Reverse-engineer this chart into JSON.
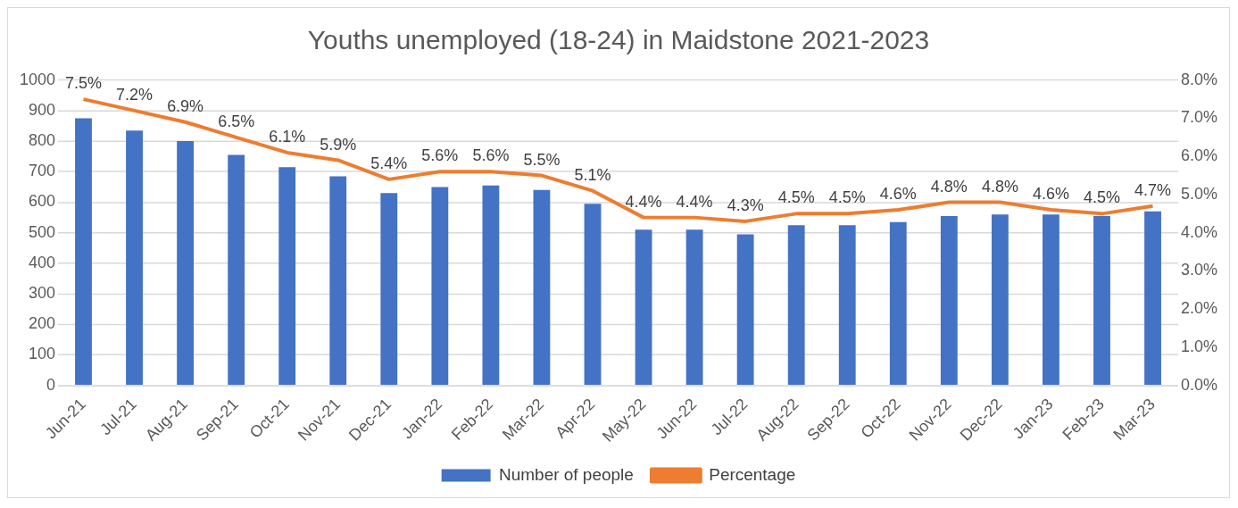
{
  "chart_data": {
    "type": "bar",
    "title": "Youths unemployed (18-24) in Maidstone 2021-2023",
    "categories": [
      "Jun-21",
      "Jul-21",
      "Aug-21",
      "Sep-21",
      "Oct-21",
      "Nov-21",
      "Dec-21",
      "Jan-22",
      "Feb-22",
      "Mar-22",
      "Apr-22",
      "May-22",
      "Jun-22",
      "Jul-22",
      "Aug-22",
      "Sep-22",
      "Oct-22",
      "Nov-22",
      "Dec-22",
      "Jan-23",
      "Feb-23",
      "Mar-23"
    ],
    "series": [
      {
        "name": "Number of people",
        "color": "#4472c4",
        "values": [
          875,
          835,
          800,
          755,
          715,
          685,
          630,
          650,
          655,
          640,
          595,
          510,
          510,
          495,
          525,
          525,
          535,
          555,
          560,
          560,
          555,
          570
        ]
      },
      {
        "name": "Percentage",
        "type": "line",
        "axis": "y2",
        "color": "#ed7d31",
        "values": [
          7.5,
          7.2,
          6.9,
          6.5,
          6.1,
          5.9,
          5.4,
          5.6,
          5.6,
          5.5,
          5.1,
          4.4,
          4.4,
          4.3,
          4.5,
          4.5,
          4.6,
          4.8,
          4.8,
          4.6,
          4.5,
          4.7
        ],
        "value_labels": [
          "7.5%",
          "7.2%",
          "6.9%",
          "6.5%",
          "6.1%",
          "5.9%",
          "5.4%",
          "5.6%",
          "5.6%",
          "5.5%",
          "5.1%",
          "4.4%",
          "4.4%",
          "4.3%",
          "4.5%",
          "4.5%",
          "4.6%",
          "4.8%",
          "4.8%",
          "4.6%",
          "4.5%",
          "4.7%"
        ]
      }
    ],
    "ylim": [
      0,
      1000
    ],
    "yticks": [
      0,
      100,
      200,
      300,
      400,
      500,
      600,
      700,
      800,
      900,
      1000
    ],
    "y2lim": [
      0,
      8
    ],
    "y2ticks": [
      {
        "value": 0,
        "label": "0.0%"
      },
      {
        "value": 1,
        "label": "1.0%"
      },
      {
        "value": 2,
        "label": "2.0%"
      },
      {
        "value": 3,
        "label": "3.0%"
      },
      {
        "value": 4,
        "label": "4.0%"
      },
      {
        "value": 5,
        "label": "5.0%"
      },
      {
        "value": 6,
        "label": "6.0%"
      },
      {
        "value": 7,
        "label": "7.0%"
      },
      {
        "value": 8,
        "label": "8.0%"
      }
    ],
    "grid": "y",
    "legend": "bottom",
    "marker": "none"
  }
}
